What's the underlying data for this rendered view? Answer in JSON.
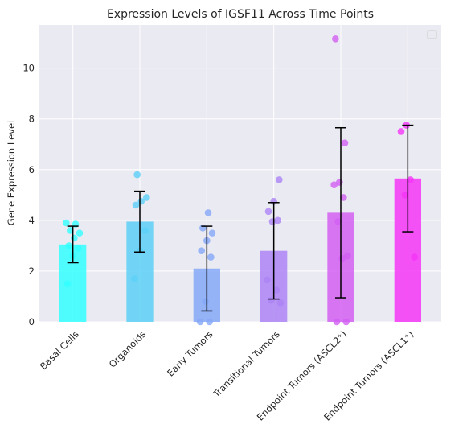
{
  "chart_data": {
    "type": "bar",
    "title": "Expression Levels of IGSF11 Across Time Points",
    "xlabel": "",
    "ylabel": "Gene Expression Level",
    "ylim": [
      0,
      11.7
    ],
    "yticks": [
      0,
      2,
      4,
      6,
      8,
      10
    ],
    "grid": true,
    "legend": {
      "placement": "top-right",
      "entries": []
    },
    "categories": [
      "Basal Cells",
      "Organoids",
      "Early Tumors",
      "Transitional Tumors",
      "Endpoint Tumors (ASCL2⁺)",
      "Endpoint Tumors (ASCL1⁺)"
    ],
    "values": [
      3.05,
      3.95,
      2.1,
      2.8,
      4.3,
      5.65
    ],
    "errors": [
      0.72,
      1.2,
      1.67,
      1.9,
      3.35,
      2.1
    ],
    "colors": [
      "#33ffff",
      "#5cd0f7",
      "#85a8f7",
      "#ad84f5",
      "#d25ff2",
      "#f535f7"
    ],
    "points": [
      [
        3.9,
        3.85,
        3.6,
        3.5,
        3.3,
        3.0,
        2.9,
        2.6,
        1.5
      ],
      [
        5.8,
        4.9,
        4.75,
        4.6,
        3.6,
        2.8,
        1.7
      ],
      [
        4.3,
        3.7,
        3.5,
        3.2,
        2.8,
        2.55,
        0.8,
        0.0,
        0.0
      ],
      [
        5.6,
        4.75,
        4.35,
        4.0,
        3.95,
        1.65,
        1.25,
        0.85,
        0.75
      ],
      [
        11.15,
        7.05,
        5.5,
        5.4,
        4.9,
        3.95,
        2.6,
        2.5,
        0.0,
        0.0
      ],
      [
        7.75,
        7.5,
        5.6,
        5.0,
        2.55
      ]
    ]
  }
}
